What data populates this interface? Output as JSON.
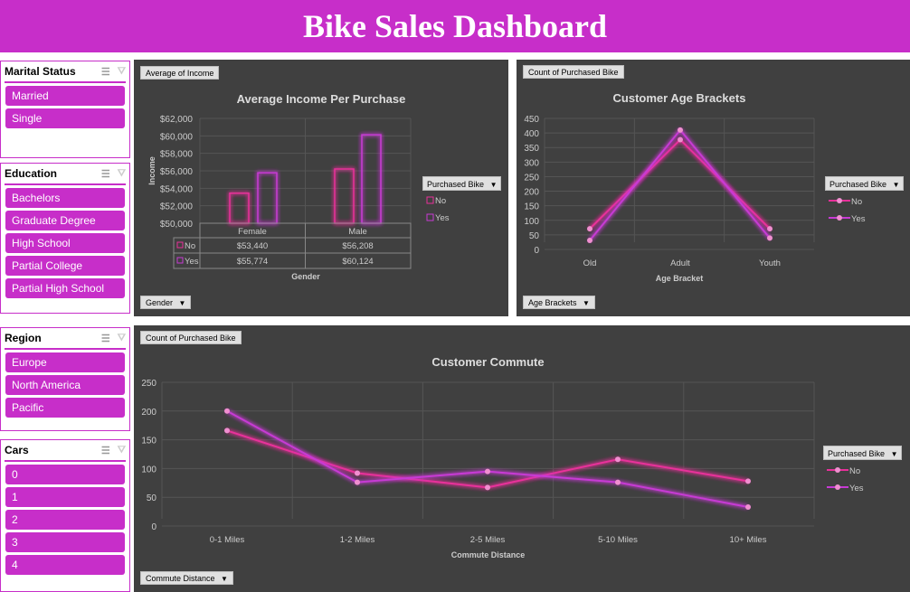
{
  "header": {
    "title": "Bike Sales Dashboard"
  },
  "colors": {
    "accent": "#c72ec9",
    "no": "#e8309a",
    "yes": "#c73ad4",
    "panel": "#404040"
  },
  "slicers": [
    {
      "title": "Marital Status",
      "items": [
        "Married",
        "Single"
      ]
    },
    {
      "title": "Education",
      "items": [
        "Bachelors",
        "Graduate Degree",
        "High School",
        "Partial College",
        "Partial High School"
      ]
    },
    {
      "title": "Region",
      "items": [
        "Europe",
        "North America",
        "Pacific"
      ]
    },
    {
      "title": "Cars",
      "items": [
        "0",
        "1",
        "2",
        "3",
        "4"
      ]
    }
  ],
  "slicer_icons": [
    "multi-select-icon",
    "clear-filter-icon"
  ],
  "chart_data": [
    {
      "type": "bar",
      "title": "Average Income Per Purchase",
      "value_button": "Average of Income",
      "axis_button": "Gender",
      "legend_button": "Purchased Bike",
      "xlabel": "Gender",
      "ylabel": "Income",
      "categories": [
        "Female",
        "Male"
      ],
      "ylim": [
        50000,
        62000
      ],
      "yticks": [
        "$50,000",
        "$52,000",
        "$54,000",
        "$56,000",
        "$58,000",
        "$60,000",
        "$62,000"
      ],
      "series": [
        {
          "name": "No",
          "values": [
            53440,
            56208
          ],
          "labels": [
            "$53,440",
            "$56,208"
          ]
        },
        {
          "name": "Yes",
          "values": [
            55774,
            60124
          ],
          "labels": [
            "$55,774",
            "$60,124"
          ]
        }
      ],
      "legend": "right",
      "grid": true
    },
    {
      "type": "line",
      "title": "Customer Age Brackets",
      "value_button": "Count of Purchased Bike",
      "axis_button": "Age Brackets",
      "legend_button": "Purchased Bike",
      "xlabel": "Age Bracket",
      "ylabel": "",
      "categories": [
        "Old",
        "Adult",
        "Youth"
      ],
      "ylim": [
        0,
        450
      ],
      "yticks": [
        "0",
        "50",
        "100",
        "150",
        "200",
        "250",
        "300",
        "350",
        "400",
        "450"
      ],
      "series": [
        {
          "name": "No",
          "values": [
            71,
            377,
            71
          ]
        },
        {
          "name": "Yes",
          "values": [
            31,
            410,
            39
          ]
        }
      ],
      "legend": "right",
      "grid": true
    },
    {
      "type": "line",
      "title": "Customer Commute",
      "value_button": "Count of Purchased Bike",
      "axis_button": "Commute Distance",
      "legend_button": "Purchased Bike",
      "xlabel": "Commute Distance",
      "ylabel": "",
      "categories": [
        "0-1 Miles",
        "1-2 Miles",
        "2-5 Miles",
        "5-10 Miles",
        "10+ Miles"
      ],
      "ylim": [
        0,
        250
      ],
      "yticks": [
        "0",
        "50",
        "100",
        "150",
        "200",
        "250"
      ],
      "series": [
        {
          "name": "No",
          "values": [
            166,
            92,
            67,
            116,
            78
          ]
        },
        {
          "name": "Yes",
          "values": [
            200,
            76,
            95,
            76,
            33
          ]
        }
      ],
      "legend": "right",
      "grid": true
    }
  ]
}
